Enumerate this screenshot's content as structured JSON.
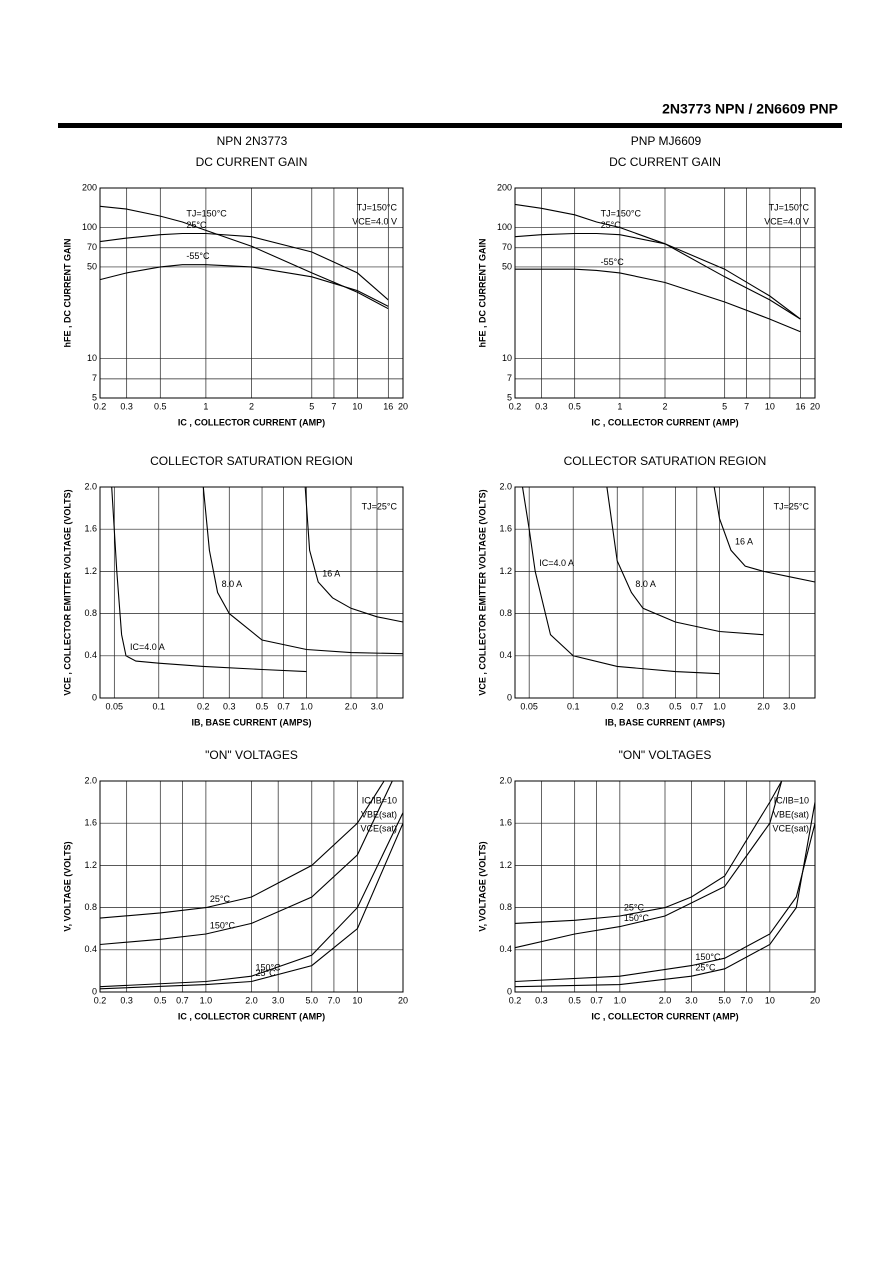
{
  "header": {
    "title": "2N3773 NPN / 2N6609 PNP",
    "columns": [
      "NPN 2N3773",
      "PNP MJ6609"
    ]
  },
  "chart_data": [
    {
      "type": "line",
      "title": "DC CURRENT GAIN",
      "x_label": "IC , COLLECTOR CURRENT (AMP)",
      "y_label": "hFE , DC CURRENT GAIN",
      "xscale": "log",
      "yscale": "log",
      "grid": true,
      "xlim": [
        0.2,
        20
      ],
      "ylim": [
        5,
        200
      ],
      "xticks": [
        0.2,
        0.3,
        0.5,
        1,
        2,
        5,
        7,
        10,
        16,
        20
      ],
      "yticks": [
        5,
        7,
        10,
        50,
        70,
        100,
        200
      ],
      "annotations": [
        "TJ=150°C",
        "VCE=4.0 V"
      ],
      "series": [
        {
          "name": "TJ=150°C",
          "color": "#000000",
          "x": [
            0.2,
            0.3,
            0.5,
            0.7,
            1,
            2,
            5,
            10,
            16
          ],
          "values": [
            145,
            138,
            122,
            110,
            95,
            72,
            45,
            32,
            24
          ]
        },
        {
          "name": "25°C",
          "color": "#000000",
          "x": [
            0.2,
            0.3,
            0.5,
            0.7,
            1,
            2,
            5,
            10,
            16
          ],
          "values": [
            78,
            83,
            88,
            90,
            90,
            85,
            65,
            45,
            28
          ]
        },
        {
          "name": "-55°C",
          "color": "#000000",
          "x": [
            0.2,
            0.3,
            0.5,
            0.7,
            1,
            2,
            5,
            10,
            16
          ],
          "values": [
            40,
            45,
            50,
            52,
            52,
            50,
            42,
            33,
            25
          ]
        }
      ]
    },
    {
      "type": "line",
      "title": "DC CURRENT GAIN",
      "x_label": "IC , COLLECTOR CURRENT (AMP)",
      "y_label": "hFE , DC CURRENT GAIN",
      "xscale": "log",
      "yscale": "log",
      "grid": true,
      "xlim": [
        0.2,
        20
      ],
      "ylim": [
        5,
        200
      ],
      "xticks": [
        0.2,
        0.3,
        0.5,
        1,
        2,
        5,
        7,
        10,
        16,
        20
      ],
      "yticks": [
        5,
        7,
        10,
        50,
        70,
        100,
        200
      ],
      "annotations": [
        "TJ=150°C",
        "VCE=4.0 V"
      ],
      "series": [
        {
          "name": "TJ=150°C",
          "color": "#000000",
          "x": [
            0.2,
            0.3,
            0.5,
            0.7,
            1,
            2,
            5,
            10,
            16
          ],
          "values": [
            150,
            140,
            125,
            110,
            100,
            75,
            42,
            28,
            20
          ]
        },
        {
          "name": "25°C",
          "color": "#000000",
          "x": [
            0.2,
            0.3,
            0.5,
            0.7,
            1,
            2,
            5,
            10,
            16
          ],
          "values": [
            85,
            88,
            90,
            90,
            88,
            75,
            48,
            30,
            20
          ]
        },
        {
          "name": "-55°C",
          "color": "#000000",
          "x": [
            0.2,
            0.3,
            0.5,
            0.7,
            1,
            2,
            5,
            10,
            16
          ],
          "values": [
            48,
            48,
            48,
            47,
            45,
            38,
            27,
            20,
            16
          ]
        }
      ]
    },
    {
      "type": "line",
      "title": "COLLECTOR SATURATION REGION",
      "x_label": "IB, BASE CURRENT (AMPS)",
      "y_label": "VCE , COLLECTOR EMITTER VOLTAGE (VOLTS)",
      "xscale": "log",
      "yscale": "linear",
      "grid": true,
      "xlim": [
        0.04,
        4.5
      ],
      "ylim": [
        0,
        2
      ],
      "xticks": [
        0.05,
        0.1,
        0.2,
        0.3,
        0.5,
        0.7,
        {
          "value": 1,
          "label": "1.0"
        },
        {
          "value": 2,
          "label": "2.0"
        },
        {
          "value": 3,
          "label": "3.0"
        }
      ],
      "yticks": [
        0,
        0.4,
        0.8,
        1.2,
        1.6,
        {
          "value": 2,
          "label": "2.0"
        }
      ],
      "annotations": [
        "TJ=25°C"
      ],
      "series": [
        {
          "name": "IC=4.0 A",
          "color": "#000000",
          "x": [
            0.048,
            0.052,
            0.056,
            0.06,
            0.07,
            0.1,
            0.2,
            0.5,
            1.0
          ],
          "values": [
            2.0,
            1.2,
            0.6,
            0.4,
            0.35,
            0.33,
            0.3,
            0.27,
            0.25
          ]
        },
        {
          "name": "8.0 A",
          "color": "#000000",
          "x": [
            0.2,
            0.22,
            0.25,
            0.3,
            0.5,
            1.0,
            2.0,
            4.5
          ],
          "values": [
            2.0,
            1.4,
            1.0,
            0.8,
            0.55,
            0.46,
            0.43,
            0.42
          ]
        },
        {
          "name": "16 A",
          "color": "#000000",
          "x": [
            0.98,
            1.05,
            1.2,
            1.5,
            2.0,
            3.0,
            4.5
          ],
          "values": [
            2.0,
            1.4,
            1.1,
            0.95,
            0.85,
            0.77,
            0.72
          ]
        }
      ]
    },
    {
      "type": "line",
      "title": "COLLECTOR SATURATION REGION",
      "x_label": "IB, BASE CURRENT (AMPS)",
      "y_label": "VCE , COLLECTOR EMITTER VOLTAGE (VOLTS)",
      "xscale": "log",
      "yscale": "linear",
      "grid": true,
      "xlim": [
        0.04,
        4.5
      ],
      "ylim": [
        0,
        2
      ],
      "xticks": [
        0.05,
        0.1,
        0.2,
        0.3,
        0.5,
        0.7,
        {
          "value": 1,
          "label": "1.0"
        },
        {
          "value": 2,
          "label": "2.0"
        },
        {
          "value": 3,
          "label": "3.0"
        }
      ],
      "yticks": [
        0,
        0.4,
        0.8,
        1.2,
        1.6,
        {
          "value": 2,
          "label": "2.0"
        }
      ],
      "annotations": [
        "TJ=25°C"
      ],
      "series": [
        {
          "name": "IC=4.0 A",
          "color": "#000000",
          "x": [
            0.045,
            0.05,
            0.055,
            0.07,
            0.1,
            0.2,
            0.5,
            1.0
          ],
          "values": [
            2.0,
            1.6,
            1.2,
            0.6,
            0.4,
            0.3,
            0.25,
            0.23
          ]
        },
        {
          "name": "8.0 A",
          "color": "#000000",
          "x": [
            0.17,
            0.2,
            0.25,
            0.3,
            0.5,
            1.0,
            2.0
          ],
          "values": [
            2.0,
            1.3,
            1.0,
            0.85,
            0.72,
            0.63,
            0.6
          ]
        },
        {
          "name": "16 A",
          "color": "#000000",
          "x": [
            0.92,
            1.0,
            1.2,
            1.5,
            2.0,
            3.0,
            4.5
          ],
          "values": [
            2.0,
            1.7,
            1.4,
            1.25,
            1.2,
            1.15,
            1.1
          ]
        }
      ]
    },
    {
      "type": "line",
      "title": "\"ON\" VOLTAGES",
      "x_label": "IC , COLLECTOR CURRENT (AMP)",
      "y_label": "V, VOLTAGE (VOLTS)",
      "xscale": "log",
      "yscale": "linear",
      "grid": true,
      "xlim": [
        0.2,
        20
      ],
      "ylim": [
        0,
        2
      ],
      "xticks": [
        0.2,
        0.3,
        0.5,
        0.7,
        {
          "value": 1,
          "label": "1.0"
        },
        {
          "value": 2,
          "label": "2.0"
        },
        {
          "value": 3,
          "label": "3.0"
        },
        {
          "value": 5,
          "label": "5.0"
        },
        {
          "value": 7,
          "label": "7.0"
        },
        10,
        20
      ],
      "yticks": [
        0,
        0.4,
        0.8,
        1.2,
        1.6,
        {
          "value": 2,
          "label": "2.0"
        }
      ],
      "annotations": [
        "IC/IB=10",
        "VBE(sat)",
        "VCE(sat)"
      ],
      "series": [
        {
          "name": "25°C",
          "color": "#000000",
          "x": [
            0.2,
            0.5,
            1,
            2,
            5,
            10,
            15
          ],
          "values": [
            0.7,
            0.75,
            0.8,
            0.9,
            1.2,
            1.6,
            2.0
          ]
        },
        {
          "name": "150°C",
          "color": "#000000",
          "x": [
            0.2,
            0.5,
            1,
            2,
            5,
            10,
            17
          ],
          "values": [
            0.45,
            0.5,
            0.55,
            0.65,
            0.9,
            1.3,
            2.0
          ]
        },
        {
          "name": "150°C",
          "color": "#000000",
          "x": [
            0.2,
            1,
            2,
            5,
            10,
            20
          ],
          "values": [
            0.05,
            0.1,
            0.15,
            0.35,
            0.8,
            1.7
          ]
        },
        {
          "name": "25°C",
          "color": "#000000",
          "x": [
            0.2,
            1,
            2,
            5,
            10,
            20
          ],
          "values": [
            0.03,
            0.07,
            0.1,
            0.25,
            0.6,
            1.6
          ]
        }
      ]
    },
    {
      "type": "line",
      "title": "\"ON\" VOLTAGES",
      "x_label": "IC , COLLECTOR CURRENT (AMP)",
      "y_label": "V, VOLTAGE (VOLTS)",
      "xscale": "log",
      "yscale": "linear",
      "grid": true,
      "xlim": [
        0.2,
        20
      ],
      "ylim": [
        0,
        2
      ],
      "xticks": [
        0.2,
        0.3,
        0.5,
        0.7,
        {
          "value": 1,
          "label": "1.0"
        },
        {
          "value": 2,
          "label": "2.0"
        },
        {
          "value": 3,
          "label": "3.0"
        },
        {
          "value": 5,
          "label": "5.0"
        },
        {
          "value": 7,
          "label": "7.0"
        },
        10,
        20
      ],
      "yticks": [
        0,
        0.4,
        0.8,
        1.2,
        1.6,
        {
          "value": 2,
          "label": "2.0"
        }
      ],
      "annotations": [
        "IC/IB=10",
        "VBE(sat)",
        "VCE(sat)"
      ],
      "series": [
        {
          "name": "25°C",
          "color": "#000000",
          "x": [
            0.2,
            0.5,
            1,
            2,
            3,
            5,
            10,
            12
          ],
          "values": [
            0.65,
            0.68,
            0.72,
            0.8,
            0.9,
            1.1,
            1.8,
            2.0
          ]
        },
        {
          "name": "150°C",
          "color": "#000000",
          "x": [
            0.2,
            0.5,
            1,
            2,
            5,
            10,
            12
          ],
          "values": [
            0.42,
            0.55,
            0.62,
            0.72,
            1.0,
            1.6,
            2.0
          ]
        },
        {
          "name": "150°C",
          "color": "#000000",
          "x": [
            0.2,
            1,
            3,
            5,
            10,
            15,
            20
          ],
          "values": [
            0.1,
            0.15,
            0.25,
            0.32,
            0.55,
            0.9,
            1.6
          ]
        },
        {
          "name": "25°C",
          "color": "#000000",
          "x": [
            0.2,
            1,
            3,
            5,
            10,
            15,
            20
          ],
          "values": [
            0.05,
            0.07,
            0.15,
            0.22,
            0.45,
            0.8,
            1.8
          ]
        }
      ]
    }
  ]
}
